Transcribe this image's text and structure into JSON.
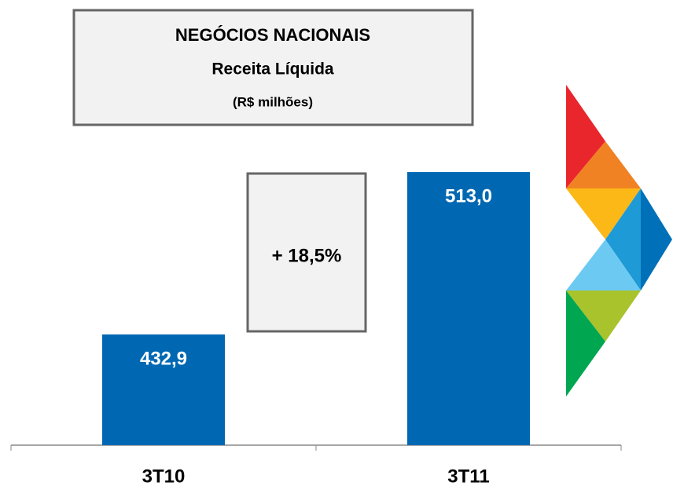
{
  "chart_data": {
    "type": "bar",
    "title": "NEGÓCIOS NACIONAIS",
    "subtitle": "Receita Líquida",
    "unit_label": "(R$ milhões)",
    "annotation": "+ 18,5%",
    "categories": [
      "3T10",
      "3T11"
    ],
    "values": [
      432.9,
      513.0
    ],
    "value_labels": [
      "432,9",
      "513,0"
    ],
    "color": "#0068b2",
    "ylim": [
      378.3,
      520
    ]
  }
}
